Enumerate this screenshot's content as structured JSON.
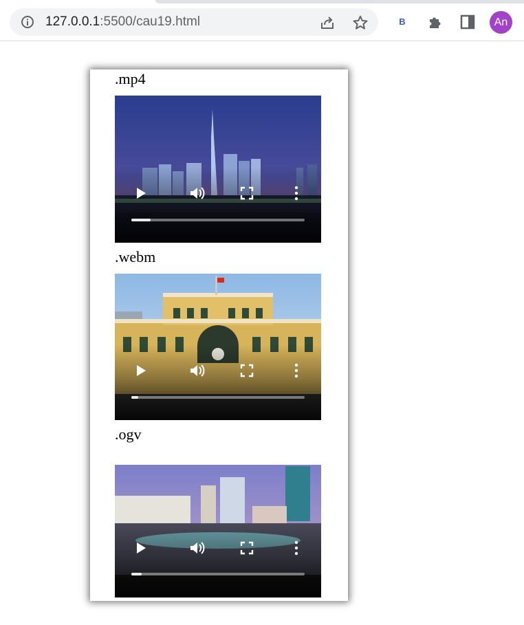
{
  "browser": {
    "url_host": "127.0.0.1",
    "url_rest": ":5500/cau19.html",
    "extension_label": "B",
    "profile_initials": "An",
    "icons": [
      "info-icon",
      "share-icon",
      "star-icon",
      "puzzle-icon",
      "side-panel-icon"
    ]
  },
  "colors": {
    "avatar": "#a142c8",
    "extension": "#3a5ad9"
  },
  "videos": [
    {
      "label": ".mp4",
      "scene": "city skyline at dusk with tall tower",
      "progress": 0.11
    },
    {
      "label": ".webm",
      "scene": "yellow colonial post office building",
      "progress": 0.04
    },
    {
      "label": ".ogv",
      "scene": "aerial city square at twilight",
      "progress": 0.06
    }
  ]
}
